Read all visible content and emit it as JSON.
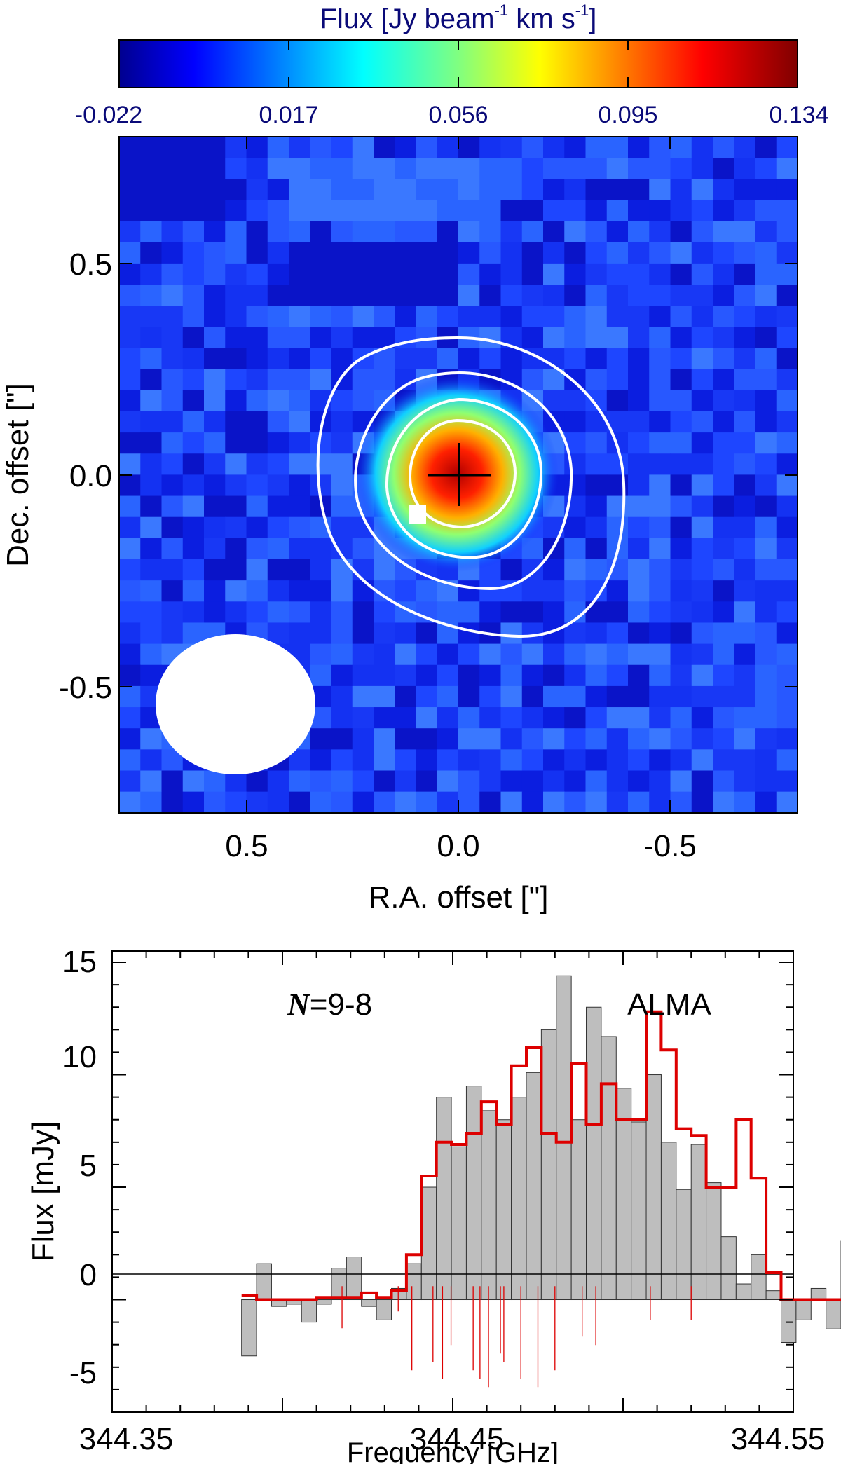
{
  "colorbar": {
    "title_main": "Flux [Jy beam",
    "title_exp1": "-1",
    "title_mid": " km s",
    "title_exp2": "-1",
    "title_end": "]",
    "ticks": [
      "-0.022",
      "0.017",
      "0.056",
      "0.095",
      "0.134"
    ],
    "range": [
      -0.022,
      0.134
    ],
    "colormap": "jet",
    "label_color": "#0a0a78"
  },
  "chart_data": [
    {
      "type": "heatmap",
      "xlabel": "R.A. offset [\"]",
      "ylabel": "Dec. offset [\"]",
      "xlim": [
        0.8,
        -0.8
      ],
      "ylim": [
        -0.8,
        0.8
      ],
      "x_ticks": [
        "0.5",
        "0.0",
        "-0.5"
      ],
      "x_tick_values": [
        0.5,
        0.0,
        -0.5
      ],
      "y_ticks": [
        "0.5",
        "0.0",
        "-0.5"
      ],
      "y_tick_values": [
        0.5,
        0.0,
        -0.5
      ],
      "peak_flux": 0.134,
      "peak_position": [
        0.0,
        0.0
      ],
      "background_flux": 0.004,
      "source_marker": "black-cross",
      "contour_color": "#ffffff",
      "contour_levels": 4,
      "beam_ellipse": {
        "center": [
          0.52,
          -0.54
        ],
        "major": 0.38,
        "minor": 0.33,
        "color": "#ffffff"
      }
    },
    {
      "type": "line",
      "xlabel": "Frequency [GHz]",
      "ylabel": "Flux [mJy]",
      "xlim": [
        344.35,
        344.55
      ],
      "ylim": [
        -5,
        15.5
      ],
      "x_ticks": [
        "344.35",
        "344.45",
        "344.55"
      ],
      "x_tick_values": [
        344.35,
        344.45,
        344.55
      ],
      "y_ticks": [
        "-5",
        "0",
        "5",
        "10",
        "15"
      ],
      "y_tick_values": [
        -5,
        0,
        5,
        10,
        15
      ],
      "annotations": {
        "transition_italic": "N",
        "transition_rest": "=9-8",
        "telescope": "ALMA"
      },
      "observed_color": "#bebebe",
      "model_color": "#dd0000",
      "bin_width": 0.0044,
      "observed_x": [
        344.3902,
        344.3946,
        344.399,
        344.4034,
        344.4078,
        344.4122,
        344.4166,
        344.421,
        344.4254,
        344.4298,
        344.4342,
        344.4386,
        344.443,
        344.4474,
        344.4518,
        344.4562,
        344.4606,
        344.465,
        344.4694,
        344.4738,
        344.4782,
        344.4826,
        344.487,
        344.4914,
        344.4958,
        344.5002,
        344.5046,
        344.509,
        344.5134,
        344.5178,
        344.5222
      ],
      "observed_y": [
        -2.5,
        1.6,
        -0.3,
        -0.2,
        -1.0,
        -0.2,
        1.4,
        1.9,
        -0.3,
        -0.9,
        0.5,
        1.6,
        5.0,
        9.0,
        6.8,
        9.5,
        8.4,
        8.0,
        9.0,
        10.1,
        12.0,
        14.4,
        8.0,
        13.0,
        11.7,
        9.4,
        7.9,
        10.0,
        7.0,
        4.9,
        6.9
      ],
      "observed_x_tail": [
        344.5266,
        344.531,
        344.5354,
        344.5398,
        344.5442,
        344.5486,
        344.553,
        344.5574,
        344.5618,
        344.5662
      ],
      "observed_y_tail": [
        5.2,
        2.8,
        0.7,
        2.0,
        0.4,
        -1.9,
        -0.9,
        0.5,
        -1.3,
        2.6
      ],
      "model_y": [
        0.2,
        0.0,
        0.0,
        0.0,
        0.0,
        0.1,
        0.1,
        0.1,
        0.3,
        0.1,
        0.4,
        2.0,
        5.5,
        7.0,
        6.9,
        7.4,
        8.8,
        7.8,
        10.4,
        11.2,
        7.4,
        7.0,
        10.5,
        7.8,
        9.6,
        8.0,
        8.0,
        12.8,
        11.1,
        7.6,
        7.3
      ],
      "model_y_tail": [
        5.0,
        5.0,
        8.0,
        5.4,
        1.2,
        0.0,
        0.0,
        0.0,
        0.0,
        0.0
      ],
      "hyperfine_lines_x": [
        344.4175,
        344.434,
        344.438,
        344.4442,
        344.447,
        344.4495,
        344.456,
        344.458,
        344.4605,
        344.464,
        344.465,
        344.47,
        344.475,
        344.48,
        344.488,
        344.492,
        344.508,
        344.52
      ],
      "hyperfine_lines_depth": [
        0.5,
        0.3,
        1.0,
        0.9,
        1.1,
        0.7,
        1.0,
        1.1,
        1.2,
        0.8,
        0.9,
        1.1,
        1.2,
        1.0,
        0.6,
        0.7,
        0.4,
        0.4
      ]
    }
  ]
}
